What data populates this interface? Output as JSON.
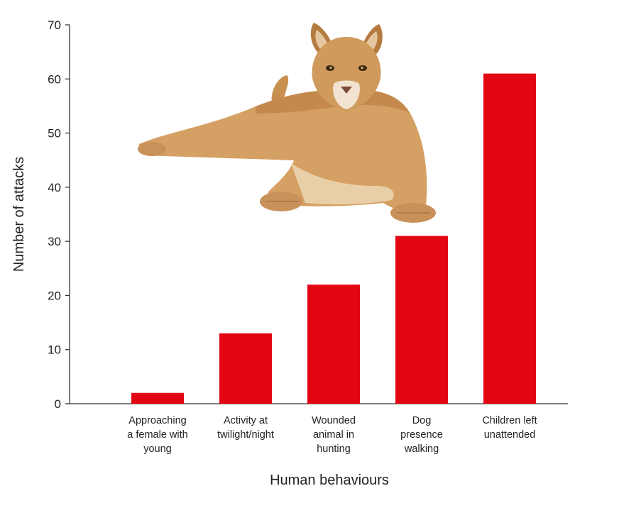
{
  "chart_data": {
    "type": "bar",
    "categories": [
      [
        "Approaching",
        "a female with",
        "young"
      ],
      [
        "Activity at",
        "twilight/night"
      ],
      [
        "Wounded",
        "animal in",
        "hunting"
      ],
      [
        "Dog",
        "presence",
        "walking"
      ],
      [
        "Children left",
        "unattended"
      ]
    ],
    "values": [
      2,
      13,
      22,
      31,
      61
    ],
    "xlabel": "Human behaviours",
    "ylabel": "Number of attacks",
    "ylim": [
      0,
      70
    ],
    "yticks": [
      0,
      10,
      20,
      30,
      40,
      50,
      60,
      70
    ],
    "grid": false,
    "bar_color": "#e20613",
    "illustration": "puma-photo"
  }
}
